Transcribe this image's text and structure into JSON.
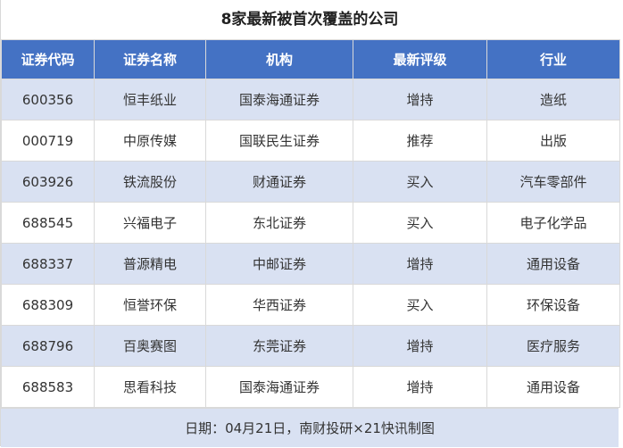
{
  "title": "8家最新被首次覆盖的公司",
  "columns": [
    "证券代码",
    "证券名称",
    "机构",
    "最新评级",
    "行业"
  ],
  "rows": [
    [
      "600356",
      "恒丰纸业",
      "国泰海通证券",
      "增持",
      "造纸"
    ],
    [
      "000719",
      "中原传媒",
      "国联民生证券",
      "推荐",
      "出版"
    ],
    [
      "603926",
      "铁流股份",
      "财通证券",
      "买入",
      "汽车零部件"
    ],
    [
      "688545",
      "兴福电子",
      "东北证券",
      "买入",
      "电子化学品"
    ],
    [
      "688337",
      "普源精电",
      "中邮证券",
      "增持",
      "通用设备"
    ],
    [
      "688309",
      "恒誉环保",
      "华西证券",
      "买入",
      "环保设备"
    ],
    [
      "688796",
      "百奥赛图",
      "东莞证券",
      "增持",
      "医疗服务"
    ],
    [
      "688583",
      "思看科技",
      "国泰海通证券",
      "增持",
      "通用设备"
    ]
  ],
  "footer": "日期：04月21日，南财投研×21快讯制图",
  "colors": {
    "header_bg": "#4472c4",
    "stripe_bg": "#d9e1f2",
    "border": "#d9d9d9"
  }
}
